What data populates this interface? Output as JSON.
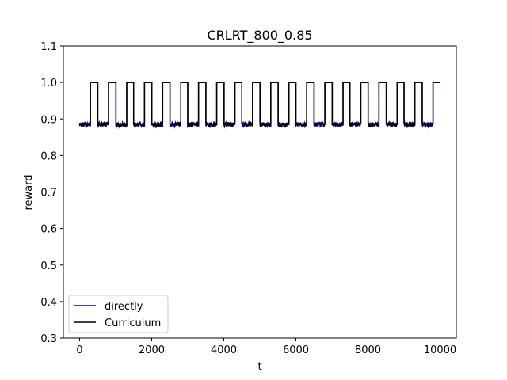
{
  "chart_data": {
    "type": "line",
    "title": "CRLRT_800_0.85",
    "xlabel": "t",
    "ylabel": "reward",
    "xlim": [
      -450,
      10450
    ],
    "ylim": [
      0.3,
      1.1
    ],
    "x_ticks": [
      0,
      2000,
      4000,
      6000,
      8000,
      10000
    ],
    "y_ticks": [
      0.3,
      0.4,
      0.5,
      0.6,
      0.7,
      0.8,
      0.9,
      1.0,
      1.1
    ],
    "x_tick_labels": [
      "0",
      "2000",
      "4000",
      "6000",
      "8000",
      "10000"
    ],
    "y_tick_labels": [
      "0.3",
      "0.4",
      "0.5",
      "0.6",
      "0.7",
      "0.8",
      "0.9",
      "1.0",
      "1.1"
    ],
    "grid": false,
    "legend_position": "lower-left",
    "pattern": {
      "t_start": 0,
      "t_end": 10000,
      "period": 500,
      "low_duration": 300,
      "high_duration": 200,
      "low_value": 0.885,
      "high_value": 1.0,
      "noise_amplitude": 0.006
    },
    "series": [
      {
        "name": "directly",
        "color": "#0000cc"
      },
      {
        "name": "Curriculum",
        "color": "#000000"
      }
    ]
  }
}
